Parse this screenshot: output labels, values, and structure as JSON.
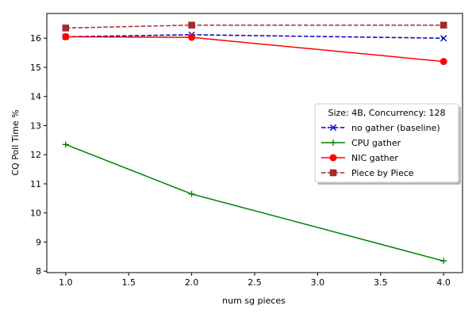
{
  "chart_data": {
    "type": "line",
    "title": "",
    "xlabel": "num sg pieces",
    "ylabel": "CQ Poll Time %",
    "xlim": [
      0.85,
      4.15
    ],
    "ylim": [
      7.95,
      16.85
    ],
    "xticks": [
      1.0,
      1.5,
      2.0,
      2.5,
      3.0,
      3.5,
      4.0
    ],
    "xtick_labels": [
      "1.0",
      "1.5",
      "2.0",
      "2.5",
      "3.0",
      "3.5",
      "4.0"
    ],
    "yticks": [
      8,
      9,
      10,
      11,
      12,
      13,
      14,
      15,
      16
    ],
    "ytick_labels": [
      "8",
      "9",
      "10",
      "11",
      "12",
      "13",
      "14",
      "15",
      "16"
    ],
    "grid": false,
    "legend": {
      "title": "Size: 4B, Concurrency: 128",
      "placement": "center-right"
    },
    "x": [
      1.0,
      2.0,
      4.0
    ],
    "series": [
      {
        "name": "no gather (baseline)",
        "values": [
          16.05,
          16.12,
          16.0
        ],
        "color": "#0000cc",
        "dash": "dashed",
        "marker": "x"
      },
      {
        "name": "CPU gather",
        "values": [
          12.35,
          10.65,
          8.35
        ],
        "color": "#008000",
        "dash": "solid",
        "marker": "plus"
      },
      {
        "name": "NIC gather",
        "values": [
          16.05,
          16.03,
          15.2
        ],
        "color": "#ff0000",
        "dash": "solid",
        "marker": "circle"
      },
      {
        "name": "Piece by Piece",
        "values": [
          16.35,
          16.45,
          16.45
        ],
        "color": "#a52a2a",
        "dash": "dashed",
        "marker": "square"
      }
    ]
  }
}
